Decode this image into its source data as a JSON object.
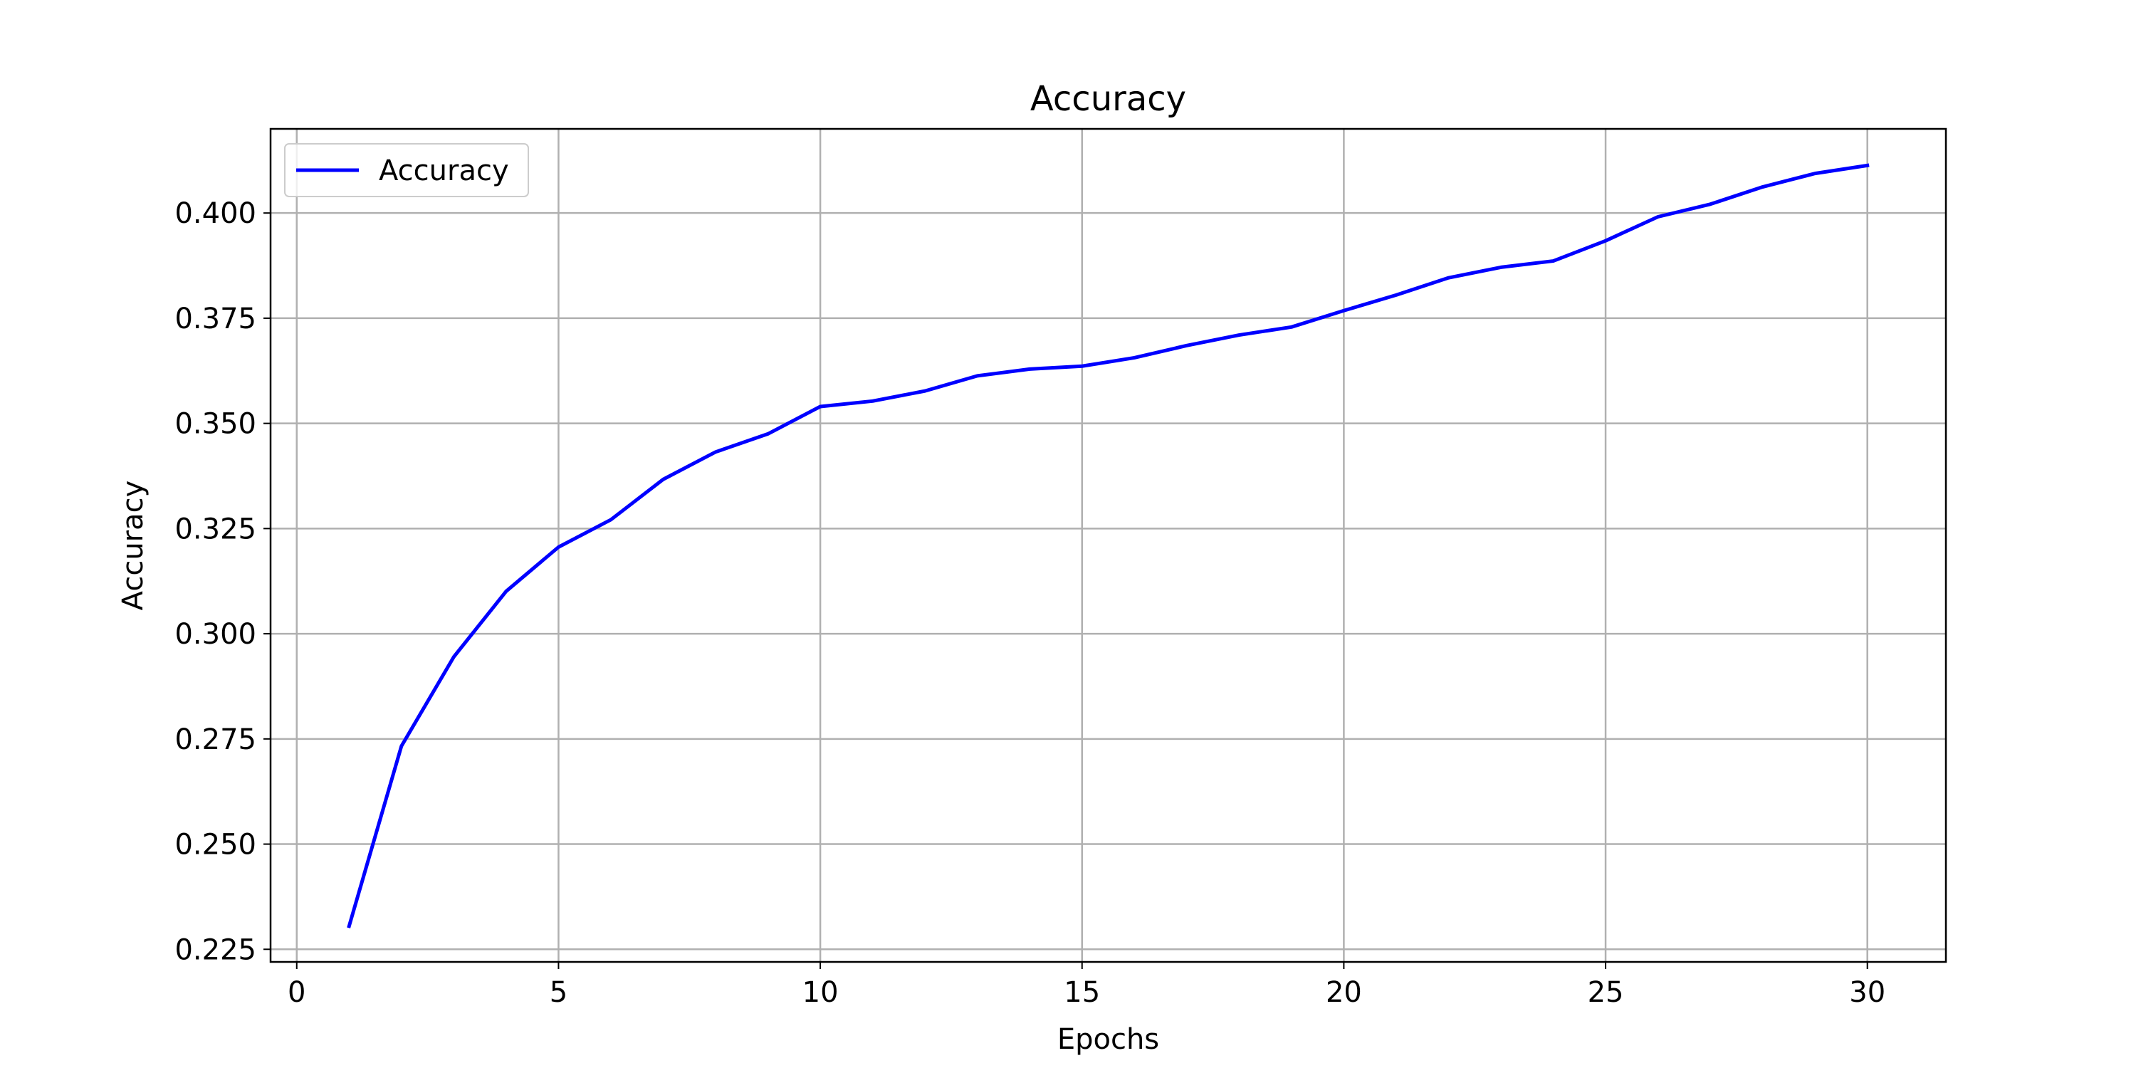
{
  "chart_data": {
    "type": "line",
    "title": "Accuracy",
    "xlabel": "Epochs",
    "ylabel": "Accuracy",
    "xlim": [
      -0.5,
      31.5
    ],
    "ylim": [
      0.222,
      0.42
    ],
    "xticks": [
      0,
      5,
      10,
      15,
      20,
      25,
      30
    ],
    "yticks": [
      0.225,
      0.25,
      0.275,
      0.3,
      0.325,
      0.35,
      0.375,
      0.4
    ],
    "ytick_labels": [
      "0.225",
      "0.250",
      "0.275",
      "0.300",
      "0.325",
      "0.350",
      "0.375",
      "0.400"
    ],
    "grid": true,
    "legend_position": "top-left",
    "x": [
      1,
      2,
      3,
      4,
      5,
      6,
      7,
      8,
      9,
      10,
      11,
      12,
      13,
      14,
      15,
      16,
      17,
      18,
      19,
      20,
      21,
      22,
      23,
      24,
      25,
      26,
      27,
      28,
      29,
      30
    ],
    "series": [
      {
        "name": "Accuracy",
        "color": "#0000ff",
        "values": [
          0.2305,
          0.2733,
          0.2945,
          0.3101,
          0.3206,
          0.3271,
          0.3367,
          0.3432,
          0.3475,
          0.354,
          0.3553,
          0.3577,
          0.3613,
          0.3629,
          0.3636,
          0.3656,
          0.3685,
          0.371,
          0.3729,
          0.3768,
          0.3805,
          0.3846,
          0.3871,
          0.3886,
          0.3934,
          0.3991,
          0.4021,
          0.4062,
          0.4094,
          0.4113
        ]
      }
    ]
  }
}
